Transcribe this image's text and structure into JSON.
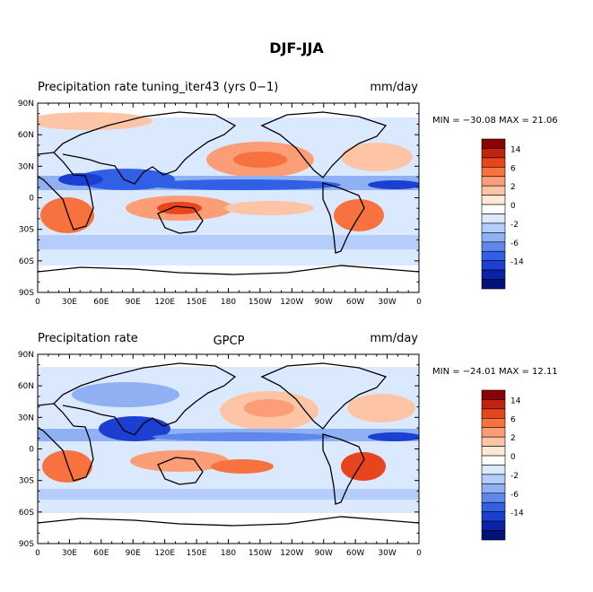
{
  "figure_title": "DJF-JJA",
  "colorbar": {
    "levels": [
      "14",
      "6",
      "2",
      "0",
      "-2",
      "-6",
      "-14"
    ],
    "colors": [
      "#8b0000",
      "#c1230f",
      "#e8451f",
      "#f7723f",
      "#fb9e78",
      "#fdc4a6",
      "#ffe8d6",
      "#ffffff",
      "#dbe9ff",
      "#b5cdfa",
      "#8fb0f3",
      "#5f87ec",
      "#3160e6",
      "#1a3fd1",
      "#0a22a8",
      "#00127a"
    ]
  },
  "chart_data": [
    {
      "type": "heatmap",
      "title_left": "Precipitation rate tuning_iter43 (yrs 0−1)",
      "title_center": "",
      "units": "mm/day",
      "min_max_text": "MIN = −30.08 MAX =  21.06",
      "min": -30.08,
      "max": 21.06,
      "x_ticks": [
        "0",
        "30E",
        "60E",
        "90E",
        "120E",
        "150E",
        "180",
        "150W",
        "120W",
        "90W",
        "60W",
        "30W",
        "0"
      ],
      "y_ticks": [
        "90N",
        "60N",
        "30N",
        "0",
        "30S",
        "60S",
        "90S"
      ]
    },
    {
      "type": "heatmap",
      "title_left": "Precipitation rate",
      "title_center": "GPCP",
      "units": "mm/day",
      "min_max_text": "MIN = −24.01 MAX =  12.11",
      "min": -24.01,
      "max": 12.11,
      "x_ticks": [
        "0",
        "30E",
        "60E",
        "90E",
        "120E",
        "150E",
        "180",
        "150W",
        "120W",
        "90W",
        "60W",
        "30W",
        "0"
      ],
      "y_ticks": [
        "90N",
        "60N",
        "30N",
        "0",
        "30S",
        "60S",
        "90S"
      ]
    }
  ]
}
